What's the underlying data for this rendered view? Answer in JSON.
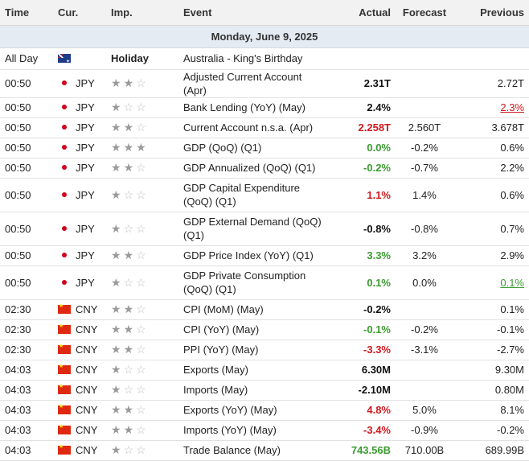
{
  "columns": {
    "time": "Time",
    "currency": "Cur.",
    "importance": "Imp.",
    "event": "Event",
    "actual": "Actual",
    "forecast": "Forecast",
    "previous": "Previous"
  },
  "date_header": "Monday, June 9, 2025",
  "colors": {
    "positive": "#3a9b2f",
    "negative": "#d0181e",
    "star_filled": "#9a9a9a",
    "star_empty": "#c2c2c2",
    "date_row_bg": "#e4ebf3"
  },
  "holiday": {
    "time": "All Day",
    "flag": "australia-flag-icon",
    "label": "Holiday",
    "event": "Australia - King's Birthday"
  },
  "events": [
    {
      "time": "00:50",
      "flag": "japan-flag-icon",
      "currency": "JPY",
      "stars": 2,
      "event": "Adjusted Current Account (Apr)",
      "actual": "2.31T",
      "actual_color": "black",
      "forecast": "",
      "previous": "2.72T",
      "previous_style": ""
    },
    {
      "time": "00:50",
      "flag": "japan-flag-icon",
      "currency": "JPY",
      "stars": 1,
      "event": "Bank Lending (YoY) (May)",
      "actual": "2.4%",
      "actual_color": "black",
      "forecast": "",
      "previous": "2.3%",
      "previous_style": "red"
    },
    {
      "time": "00:50",
      "flag": "japan-flag-icon",
      "currency": "JPY",
      "stars": 2,
      "event": "Current Account n.s.a. (Apr)",
      "actual": "2.258T",
      "actual_color": "red",
      "forecast": "2.560T",
      "previous": "3.678T",
      "previous_style": ""
    },
    {
      "time": "00:50",
      "flag": "japan-flag-icon",
      "currency": "JPY",
      "stars": 3,
      "event": "GDP (QoQ) (Q1)",
      "actual": "0.0%",
      "actual_color": "green",
      "forecast": "-0.2%",
      "previous": "0.6%",
      "previous_style": ""
    },
    {
      "time": "00:50",
      "flag": "japan-flag-icon",
      "currency": "JPY",
      "stars": 2,
      "event": "GDP Annualized (QoQ) (Q1)",
      "actual": "-0.2%",
      "actual_color": "green",
      "forecast": "-0.7%",
      "previous": "2.2%",
      "previous_style": ""
    },
    {
      "time": "00:50",
      "flag": "japan-flag-icon",
      "currency": "JPY",
      "stars": 1,
      "event": "GDP Capital Expenditure (QoQ) (Q1)",
      "actual": "1.1%",
      "actual_color": "red",
      "forecast": "1.4%",
      "previous": "0.6%",
      "previous_style": ""
    },
    {
      "time": "00:50",
      "flag": "japan-flag-icon",
      "currency": "JPY",
      "stars": 1,
      "event": "GDP External Demand (QoQ) (Q1)",
      "actual": "-0.8%",
      "actual_color": "black",
      "forecast": "-0.8%",
      "previous": "0.7%",
      "previous_style": ""
    },
    {
      "time": "00:50",
      "flag": "japan-flag-icon",
      "currency": "JPY",
      "stars": 2,
      "event": "GDP Price Index (YoY) (Q1)",
      "actual": "3.3%",
      "actual_color": "green",
      "forecast": "3.2%",
      "previous": "2.9%",
      "previous_style": ""
    },
    {
      "time": "00:50",
      "flag": "japan-flag-icon",
      "currency": "JPY",
      "stars": 1,
      "event": "GDP Private Consumption (QoQ) (Q1)",
      "actual": "0.1%",
      "actual_color": "green",
      "forecast": "0.0%",
      "previous": "0.1%",
      "previous_style": "green"
    },
    {
      "time": "02:30",
      "flag": "china-flag-icon",
      "currency": "CNY",
      "stars": 2,
      "event": "CPI (MoM) (May)",
      "actual": "-0.2%",
      "actual_color": "black",
      "forecast": "",
      "previous": "0.1%",
      "previous_style": ""
    },
    {
      "time": "02:30",
      "flag": "china-flag-icon",
      "currency": "CNY",
      "stars": 2,
      "event": "CPI (YoY) (May)",
      "actual": "-0.1%",
      "actual_color": "green",
      "forecast": "-0.2%",
      "previous": "-0.1%",
      "previous_style": ""
    },
    {
      "time": "02:30",
      "flag": "china-flag-icon",
      "currency": "CNY",
      "stars": 2,
      "event": "PPI (YoY) (May)",
      "actual": "-3.3%",
      "actual_color": "red",
      "forecast": "-3.1%",
      "previous": "-2.7%",
      "previous_style": ""
    },
    {
      "time": "04:03",
      "flag": "china-flag-icon",
      "currency": "CNY",
      "stars": 1,
      "event": "Exports (May)",
      "actual": "6.30M",
      "actual_color": "black",
      "forecast": "",
      "previous": "9.30M",
      "previous_style": ""
    },
    {
      "time": "04:03",
      "flag": "china-flag-icon",
      "currency": "CNY",
      "stars": 1,
      "event": "Imports (May)",
      "actual": "-2.10M",
      "actual_color": "black",
      "forecast": "",
      "previous": "0.80M",
      "previous_style": ""
    },
    {
      "time": "04:03",
      "flag": "china-flag-icon",
      "currency": "CNY",
      "stars": 2,
      "event": "Exports (YoY) (May)",
      "actual": "4.8%",
      "actual_color": "red",
      "forecast": "5.0%",
      "previous": "8.1%",
      "previous_style": ""
    },
    {
      "time": "04:03",
      "flag": "china-flag-icon",
      "currency": "CNY",
      "stars": 2,
      "event": "Imports (YoY) (May)",
      "actual": "-3.4%",
      "actual_color": "red",
      "forecast": "-0.9%",
      "previous": "-0.2%",
      "previous_style": ""
    },
    {
      "time": "04:03",
      "flag": "china-flag-icon",
      "currency": "CNY",
      "stars": 1,
      "event": "Trade Balance (May)",
      "actual": "743.56B",
      "actual_color": "green",
      "forecast": "710.00B",
      "previous": "689.99B",
      "previous_style": ""
    }
  ]
}
